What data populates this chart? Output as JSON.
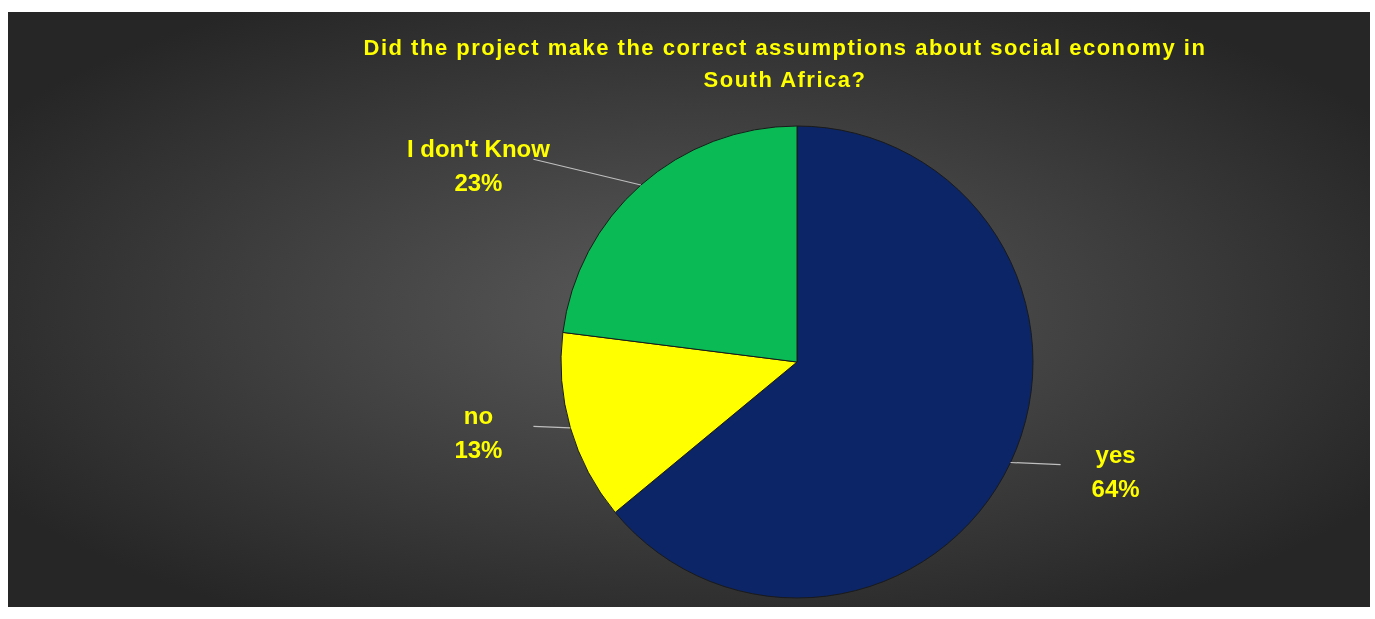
{
  "chart_data": {
    "type": "pie",
    "title": "Did the project make the correct assumptions about social economy in South Africa?",
    "categories": [
      "yes",
      "no",
      "I don't Know"
    ],
    "values": [
      64,
      13,
      23
    ],
    "value_labels": [
      "64%",
      "13%",
      "23%"
    ],
    "colors": [
      "#0b2566",
      "#ffff00",
      "#0aba55"
    ]
  }
}
